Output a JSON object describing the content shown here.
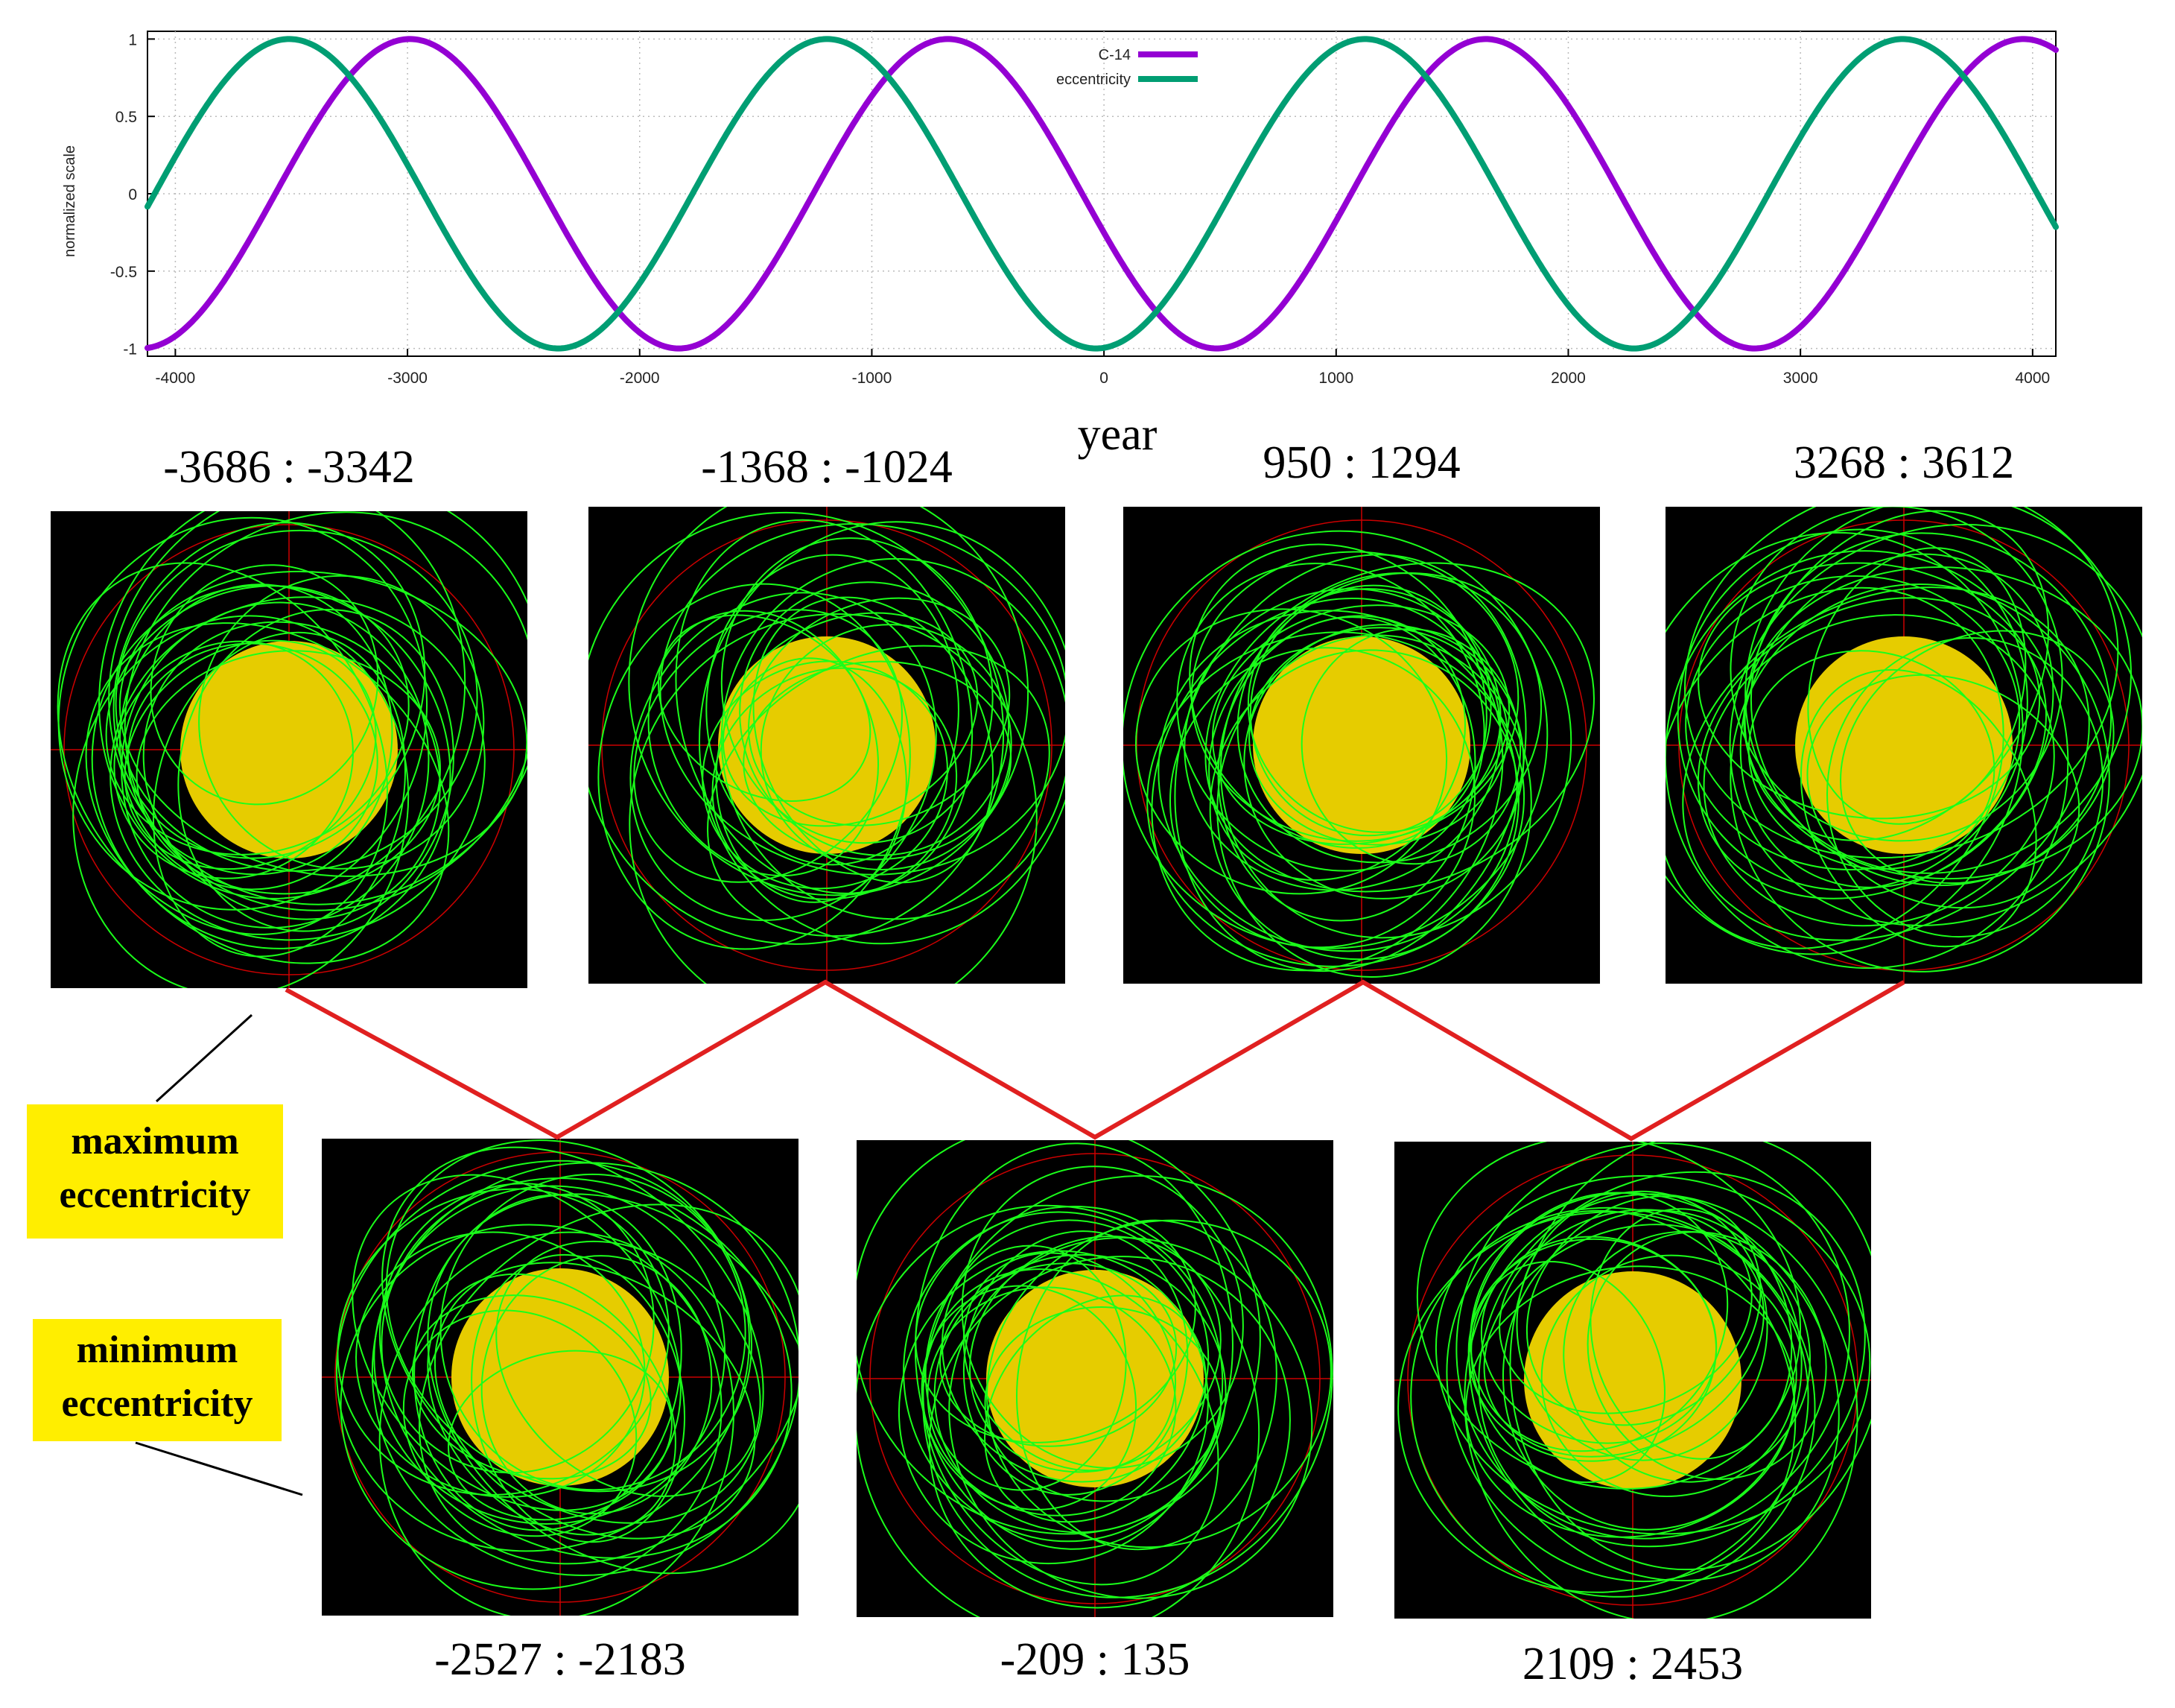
{
  "chart_data": {
    "type": "line",
    "title": "",
    "xlabel": "year",
    "ylabel": "normalized scale",
    "xlim": [
      -4120,
      4100
    ],
    "ylim": [
      -1.05,
      1.05
    ],
    "x_ticks": [
      -4000,
      -3000,
      -2000,
      -1000,
      0,
      1000,
      2000,
      3000,
      4000
    ],
    "y_ticks": [
      1,
      0.5,
      0,
      -0.5,
      -1
    ],
    "y_tick_labels": [
      "1",
      "0.5",
      "0",
      "-0.5",
      "-1"
    ],
    "legend_position": "top-center",
    "series": [
      {
        "name": "C-14",
        "color": "#9400d3",
        "period": 2317,
        "peak_year": -2990
      },
      {
        "name": "eccentricity",
        "color": "#009e73",
        "period": 2317,
        "peak_year": -3510
      }
    ]
  },
  "panels_top": [
    {
      "label": "-3686 : -3342"
    },
    {
      "label": "-1368 : -1024"
    },
    {
      "label": "950 : 1294"
    },
    {
      "label": "3268 : 3612"
    }
  ],
  "panels_bottom": [
    {
      "label": "-2527 : -2183"
    },
    {
      "label": "-209 : 135"
    },
    {
      "label": "2109 : 2453"
    }
  ],
  "tags": {
    "max_line1": "maximum",
    "max_line2": "eccentricity",
    "min_line1": "minimum",
    "min_line2": "eccentricity"
  },
  "colors": {
    "sun": "#e6cc00",
    "orbit": "#1aff1a",
    "crosshair": "#cc0000",
    "connector": "#e02020",
    "tag_bg": "#ffee00"
  }
}
